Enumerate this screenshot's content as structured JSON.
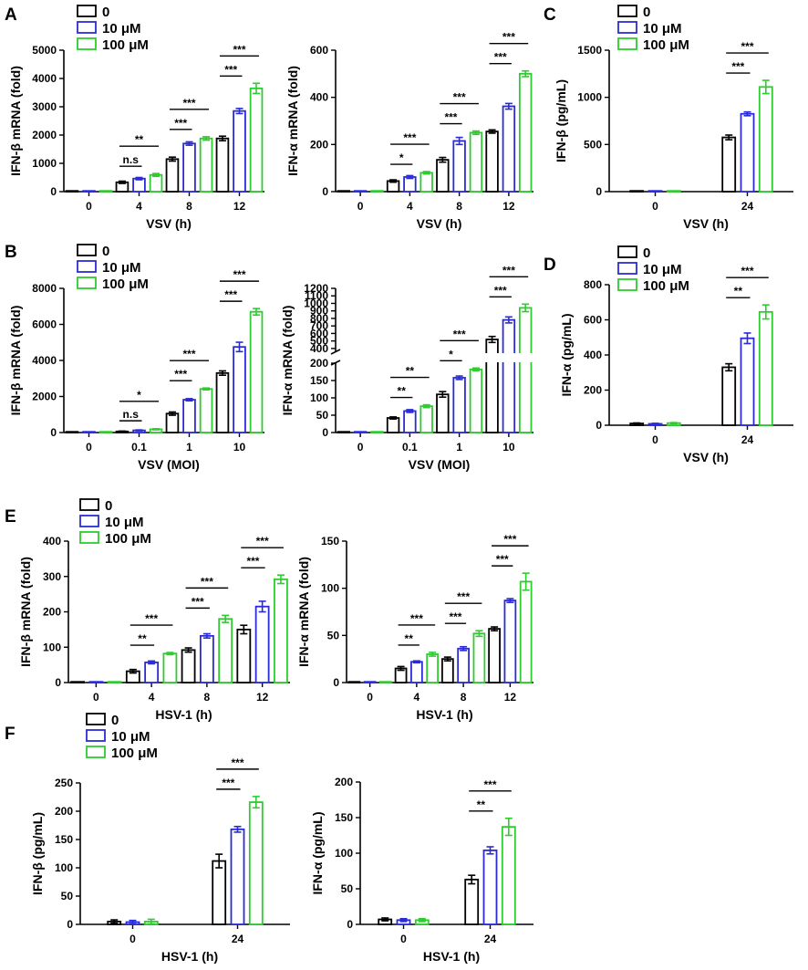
{
  "figure": {
    "legend_labels": [
      "0",
      "10 μM",
      "100 μM"
    ],
    "colors": [
      "#000000",
      "#2b2bd6",
      "#2ecc2e"
    ]
  },
  "chart_data": [
    {
      "id": "A1",
      "panel_label": "A",
      "type": "bar",
      "ylabel": "IFN-β mRNA (fold)",
      "xlabel": "VSV (h)",
      "categories": [
        "0",
        "4",
        "8",
        "12"
      ],
      "yticks": [
        0,
        1000,
        2000,
        3000,
        4000,
        5000
      ],
      "ylim": [
        0,
        5000
      ],
      "legend": true,
      "series": [
        {
          "name": "0",
          "values": [
            0,
            330,
            1150,
            1880
          ],
          "errors": [
            0,
            40,
            70,
            80
          ]
        },
        {
          "name": "10 μM",
          "values": [
            0,
            460,
            1700,
            2850
          ],
          "errors": [
            0,
            40,
            60,
            90
          ]
        },
        {
          "name": "100 μM",
          "values": [
            0,
            590,
            1880,
            3650
          ],
          "errors": [
            0,
            50,
            60,
            180
          ]
        }
      ],
      "significance": [
        {
          "cat": 0,
          "labels": []
        },
        {
          "cat": 1,
          "labels": [
            "n.s",
            "**"
          ]
        },
        {
          "cat": 2,
          "labels": [
            "***",
            "***"
          ]
        },
        {
          "cat": 3,
          "labels": [
            "***",
            "***"
          ]
        }
      ]
    },
    {
      "id": "A2",
      "panel_label": "",
      "type": "bar",
      "ylabel": "IFN-α mRNA (fold)",
      "xlabel": "VSV (h)",
      "categories": [
        "0",
        "4",
        "8",
        "12"
      ],
      "yticks": [
        0,
        200,
        400,
        600
      ],
      "ylim": [
        0,
        600
      ],
      "legend": false,
      "series": [
        {
          "name": "0",
          "values": [
            0,
            45,
            135,
            255
          ],
          "errors": [
            0,
            5,
            10,
            7
          ]
        },
        {
          "name": "10 μM",
          "values": [
            0,
            62,
            215,
            362
          ],
          "errors": [
            0,
            6,
            15,
            12
          ]
        },
        {
          "name": "100 μM",
          "values": [
            0,
            80,
            250,
            500
          ],
          "errors": [
            0,
            5,
            7,
            12
          ]
        }
      ],
      "significance": [
        {
          "cat": 0,
          "labels": []
        },
        {
          "cat": 1,
          "labels": [
            "*",
            "***"
          ]
        },
        {
          "cat": 2,
          "labels": [
            "***",
            "***"
          ]
        },
        {
          "cat": 3,
          "labels": [
            "***",
            "***"
          ]
        }
      ]
    },
    {
      "id": "C",
      "panel_label": "C",
      "type": "bar",
      "ylabel": "IFN-β (pg/mL)",
      "xlabel": "VSV (h)",
      "categories": [
        "0",
        "24"
      ],
      "yticks": [
        0,
        500,
        1000,
        1500
      ],
      "ylim": [
        0,
        1500
      ],
      "legend": true,
      "series": [
        {
          "name": "0",
          "values": [
            5,
            575
          ],
          "errors": [
            2,
            25
          ]
        },
        {
          "name": "10 μM",
          "values": [
            5,
            825
          ],
          "errors": [
            2,
            20
          ]
        },
        {
          "name": "100 μM",
          "values": [
            5,
            1110
          ],
          "errors": [
            2,
            70
          ]
        }
      ],
      "significance": [
        {
          "cat": 0,
          "labels": []
        },
        {
          "cat": 1,
          "labels": [
            "***",
            "***"
          ]
        }
      ]
    },
    {
      "id": "B1",
      "panel_label": "B",
      "type": "bar",
      "ylabel": "IFN-β mRNA (fold)",
      "xlabel": "VSV (MOI)",
      "categories": [
        "0",
        "0.1",
        "1",
        "10"
      ],
      "yticks": [
        0,
        2000,
        4000,
        6000,
        8000
      ],
      "ylim": [
        0,
        8000
      ],
      "legend": true,
      "series": [
        {
          "name": "0",
          "values": [
            0,
            60,
            1050,
            3300
          ],
          "errors": [
            0,
            20,
            90,
            120
          ]
        },
        {
          "name": "10 μM",
          "values": [
            0,
            120,
            1820,
            4750
          ],
          "errors": [
            0,
            25,
            60,
            260
          ]
        },
        {
          "name": "100 μM",
          "values": [
            0,
            180,
            2420,
            6700
          ],
          "errors": [
            0,
            30,
            50,
            180
          ]
        }
      ],
      "significance": [
        {
          "cat": 0,
          "labels": []
        },
        {
          "cat": 1,
          "labels": [
            "n.s",
            "*"
          ]
        },
        {
          "cat": 2,
          "labels": [
            "***",
            "***"
          ]
        },
        {
          "cat": 3,
          "labels": [
            "***",
            "***"
          ]
        }
      ]
    },
    {
      "id": "B2",
      "panel_label": "",
      "type": "bar",
      "ylabel": "IFN-α mRNA (fold)",
      "xlabel": "VSV (MOI)",
      "categories": [
        "0",
        "0.1",
        "1",
        "10"
      ],
      "yticks": [
        0,
        50,
        100,
        150,
        200,
        400,
        500,
        600,
        700,
        800,
        900,
        1000,
        1100,
        1200
      ],
      "ylim": [
        0,
        1200
      ],
      "axis_break": {
        "lower": [
          0,
          200
        ],
        "upper": [
          350,
          1200
        ]
      },
      "legend": false,
      "series": [
        {
          "name": "0",
          "values": [
            0,
            42,
            110,
            520
          ],
          "errors": [
            0,
            3,
            8,
            40
          ]
        },
        {
          "name": "10 μM",
          "values": [
            0,
            62,
            158,
            780
          ],
          "errors": [
            0,
            4,
            5,
            40
          ]
        },
        {
          "name": "100 μM",
          "values": [
            0,
            76,
            182,
            940
          ],
          "errors": [
            0,
            4,
            4,
            50
          ]
        }
      ],
      "significance": [
        {
          "cat": 0,
          "labels": []
        },
        {
          "cat": 1,
          "labels": [
            "**",
            "**"
          ]
        },
        {
          "cat": 2,
          "labels": [
            "*",
            "***"
          ]
        },
        {
          "cat": 3,
          "labels": [
            "***",
            "***"
          ]
        }
      ]
    },
    {
      "id": "D",
      "panel_label": "D",
      "type": "bar",
      "ylabel": "IFN-α (pg/mL)",
      "xlabel": "VSV (h)",
      "categories": [
        "0",
        "24"
      ],
      "yticks": [
        0,
        200,
        400,
        600,
        800
      ],
      "ylim": [
        0,
        800
      ],
      "legend": true,
      "series": [
        {
          "name": "0",
          "values": [
            10,
            330
          ],
          "errors": [
            3,
            20
          ]
        },
        {
          "name": "10 μM",
          "values": [
            8,
            495
          ],
          "errors": [
            3,
            30
          ]
        },
        {
          "name": "100 μM",
          "values": [
            12,
            645
          ],
          "errors": [
            3,
            40
          ]
        }
      ],
      "significance": [
        {
          "cat": 0,
          "labels": []
        },
        {
          "cat": 1,
          "labels": [
            "**",
            "***"
          ]
        }
      ]
    },
    {
      "id": "E1",
      "panel_label": "E",
      "type": "bar",
      "ylabel": "IFN-β mRNA (fold)",
      "xlabel": "HSV-1 (h)",
      "categories": [
        "0",
        "4",
        "8",
        "12"
      ],
      "yticks": [
        0,
        100,
        200,
        300,
        400
      ],
      "ylim": [
        0,
        400
      ],
      "legend": true,
      "series": [
        {
          "name": "0",
          "values": [
            1,
            32,
            92,
            150
          ],
          "errors": [
            0,
            5,
            6,
            12
          ]
        },
        {
          "name": "10 μM",
          "values": [
            1,
            57,
            132,
            215
          ],
          "errors": [
            0,
            4,
            6,
            15
          ]
        },
        {
          "name": "100 μM",
          "values": [
            1,
            82,
            180,
            292
          ],
          "errors": [
            0,
            3,
            10,
            12
          ]
        }
      ],
      "significance": [
        {
          "cat": 0,
          "labels": []
        },
        {
          "cat": 1,
          "labels": [
            "**",
            "***"
          ]
        },
        {
          "cat": 2,
          "labels": [
            "***",
            "***"
          ]
        },
        {
          "cat": 3,
          "labels": [
            "***",
            "***"
          ]
        }
      ]
    },
    {
      "id": "E2",
      "panel_label": "",
      "type": "bar",
      "ylabel": "IFN-α mRNA (fold)",
      "xlabel": "HSV-1 (h)",
      "categories": [
        "0",
        "4",
        "8",
        "12"
      ],
      "yticks": [
        0,
        50,
        100,
        150
      ],
      "ylim": [
        0,
        150
      ],
      "legend": false,
      "series": [
        {
          "name": "0",
          "values": [
            0.5,
            15,
            25,
            57
          ],
          "errors": [
            0,
            2,
            2,
            2
          ]
        },
        {
          "name": "10 μM",
          "values": [
            0.5,
            22,
            36,
            87
          ],
          "errors": [
            0,
            1,
            2,
            2
          ]
        },
        {
          "name": "100 μM",
          "values": [
            0.5,
            30,
            52,
            107
          ],
          "errors": [
            0,
            2,
            3,
            9
          ]
        }
      ],
      "significance": [
        {
          "cat": 0,
          "labels": []
        },
        {
          "cat": 1,
          "labels": [
            "**",
            "***"
          ]
        },
        {
          "cat": 2,
          "labels": [
            "***",
            "***"
          ]
        },
        {
          "cat": 3,
          "labels": [
            "***",
            "***"
          ]
        }
      ]
    },
    {
      "id": "F1",
      "panel_label": "F",
      "type": "bar",
      "ylabel": "IFN-β (pg/mL)",
      "xlabel": "HSV-1 (h)",
      "categories": [
        "0",
        "24"
      ],
      "yticks": [
        0,
        50,
        100,
        150,
        200,
        250
      ],
      "ylim": [
        0,
        250
      ],
      "legend": true,
      "series": [
        {
          "name": "0",
          "values": [
            5,
            112
          ],
          "errors": [
            3,
            12
          ]
        },
        {
          "name": "10 μM",
          "values": [
            4,
            168
          ],
          "errors": [
            3,
            5
          ]
        },
        {
          "name": "100 μM",
          "values": [
            5,
            216
          ],
          "errors": [
            4,
            10
          ]
        }
      ],
      "significance": [
        {
          "cat": 0,
          "labels": []
        },
        {
          "cat": 1,
          "labels": [
            "***",
            "***"
          ]
        }
      ]
    },
    {
      "id": "F2",
      "panel_label": "",
      "type": "bar",
      "ylabel": "IFN-α (pg/mL)",
      "xlabel": "HSV-1 (h)",
      "categories": [
        "0",
        "24"
      ],
      "yticks": [
        0,
        50,
        100,
        150,
        200
      ],
      "ylim": [
        0,
        200
      ],
      "legend": false,
      "series": [
        {
          "name": "0",
          "values": [
            7,
            63
          ],
          "errors": [
            2,
            6
          ]
        },
        {
          "name": "10 μM",
          "values": [
            6,
            104
          ],
          "errors": [
            2,
            5
          ]
        },
        {
          "name": "100 μM",
          "values": [
            6,
            137
          ],
          "errors": [
            2,
            12
          ]
        }
      ],
      "significance": [
        {
          "cat": 0,
          "labels": []
        },
        {
          "cat": 1,
          "labels": [
            "**",
            "***"
          ]
        }
      ]
    }
  ]
}
